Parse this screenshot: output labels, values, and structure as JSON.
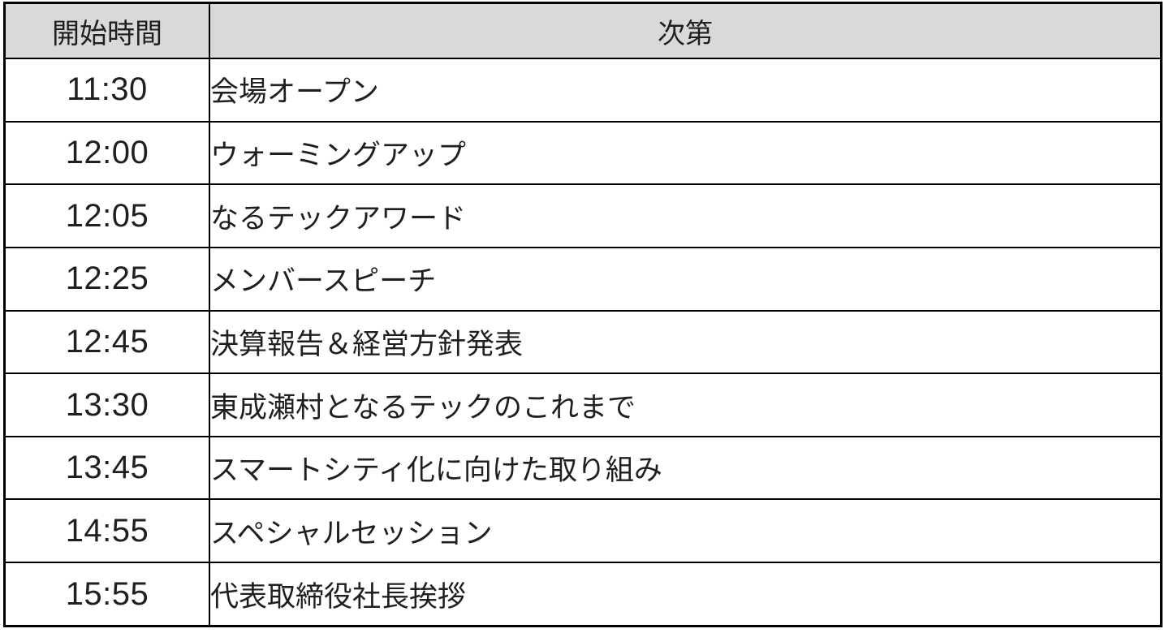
{
  "colors": {
    "header_bg": "#d9d9d9",
    "border": "#000000",
    "text": "#1f1f1f",
    "background": "#ffffff"
  },
  "table": {
    "headers": {
      "time": "開始時間",
      "agenda": "次第"
    },
    "rows": [
      {
        "time": "11:30",
        "agenda": "会場オープン"
      },
      {
        "time": "12:00",
        "agenda": "ウォーミングアップ"
      },
      {
        "time": "12:05",
        "agenda": "なるテックアワード"
      },
      {
        "time": "12:25",
        "agenda": "メンバースピーチ"
      },
      {
        "time": "12:45",
        "agenda": "決算報告＆経営方針発表"
      },
      {
        "time": "13:30",
        "agenda": "東成瀬村となるテックのこれまで"
      },
      {
        "time": "13:45",
        "agenda": "スマートシティ化に向けた取り組み"
      },
      {
        "time": "14:55",
        "agenda": "スペシャルセッション"
      },
      {
        "time": "15:55",
        "agenda": "代表取締役社長挨拶"
      }
    ]
  }
}
